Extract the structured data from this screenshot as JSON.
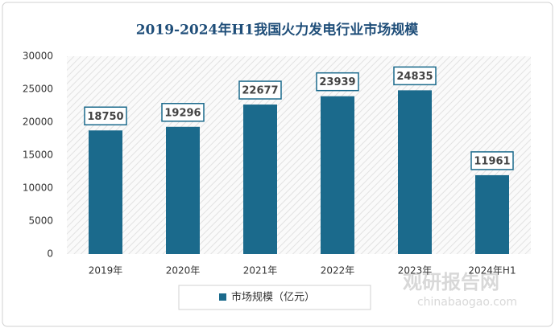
{
  "chart_data": {
    "type": "bar",
    "title": "2019-2024年H1我国火力发电行业市场规模",
    "categories": [
      "2019年",
      "2020年",
      "2021年",
      "2022年",
      "2023年",
      "2024年H1"
    ],
    "series": [
      {
        "name": "市场规模（亿元）",
        "color": "#1b6a8c",
        "values": [
          18750,
          19296,
          22677,
          23939,
          24835,
          11961
        ]
      }
    ],
    "ylim": [
      0,
      30000
    ],
    "yticks": [
      0,
      5000,
      10000,
      15000,
      20000,
      25000,
      30000
    ],
    "watermark": "观研报告网",
    "watermark_url": "chinabaogao.com"
  }
}
